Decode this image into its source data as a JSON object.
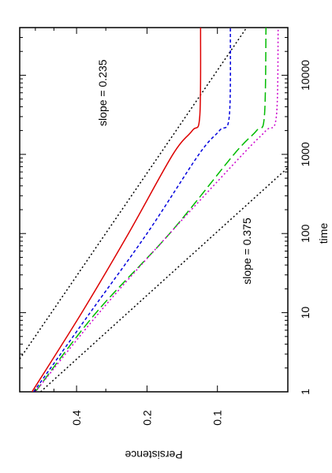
{
  "chart_data": {
    "type": "line",
    "title": "",
    "xlabel": "time",
    "ylabel": "Persistence",
    "x_scale": "log",
    "y_scale": "log",
    "xlim": [
      1,
      40000
    ],
    "ylim": [
      0.05,
      0.7
    ],
    "x_ticks": [
      1,
      10,
      100,
      1000,
      10000
    ],
    "x_tick_labels": [
      "1",
      "10",
      "100",
      "1000",
      "10000"
    ],
    "y_ticks": [
      0.1,
      0.2,
      0.4
    ],
    "y_tick_labels": [
      "0.1",
      "0.2",
      "0.4"
    ],
    "grid": false,
    "legend": "none",
    "orientation": "rotated-90-clockwise",
    "series": [
      {
        "color": "#dd0000",
        "dash": "solid",
        "points": [
          [
            1,
            0.62
          ],
          [
            10,
            0.38
          ],
          [
            100,
            0.24
          ],
          [
            1000,
            0.155
          ],
          [
            2000,
            0.128
          ],
          [
            3000,
            0.119
          ],
          [
            40000,
            0.118
          ]
        ]
      },
      {
        "color": "#0000dd",
        "dash": "short-dash",
        "points": [
          [
            1,
            0.61
          ],
          [
            10,
            0.35
          ],
          [
            100,
            0.2
          ],
          [
            1000,
            0.12
          ],
          [
            2000,
            0.098
          ],
          [
            3000,
            0.089
          ],
          [
            40000,
            0.088
          ]
        ]
      },
      {
        "color": "#00bb00",
        "dash": "long-dash",
        "points": [
          [
            1,
            0.6
          ],
          [
            10,
            0.33
          ],
          [
            100,
            0.16
          ],
          [
            1000,
            0.085
          ],
          [
            2000,
            0.068
          ],
          [
            3000,
            0.063
          ],
          [
            40000,
            0.062
          ]
        ]
      },
      {
        "color": "#cc00cc",
        "dash": "dotted",
        "points": [
          [
            1,
            0.6
          ],
          [
            10,
            0.32
          ],
          [
            100,
            0.16
          ],
          [
            1000,
            0.078
          ],
          [
            2000,
            0.062
          ],
          [
            3000,
            0.056
          ],
          [
            40000,
            0.055
          ]
        ]
      }
    ],
    "reference_lines": [
      {
        "label": "slope = 0.235",
        "color": "#000000",
        "dash": "dotted",
        "points": [
          [
            2.6,
            0.7
          ],
          [
            40000,
            0.075
          ]
        ]
      },
      {
        "label": "slope = 0.375",
        "color": "#000000",
        "dash": "dotted",
        "points": [
          [
            1,
            0.57
          ],
          [
            900,
            0.045
          ]
        ]
      }
    ],
    "annotations": [
      {
        "text": "slope = 0.235",
        "x": 6000,
        "y": 0.31
      },
      {
        "text": "slope = 0.375",
        "x": 60,
        "y": 0.075
      }
    ]
  }
}
